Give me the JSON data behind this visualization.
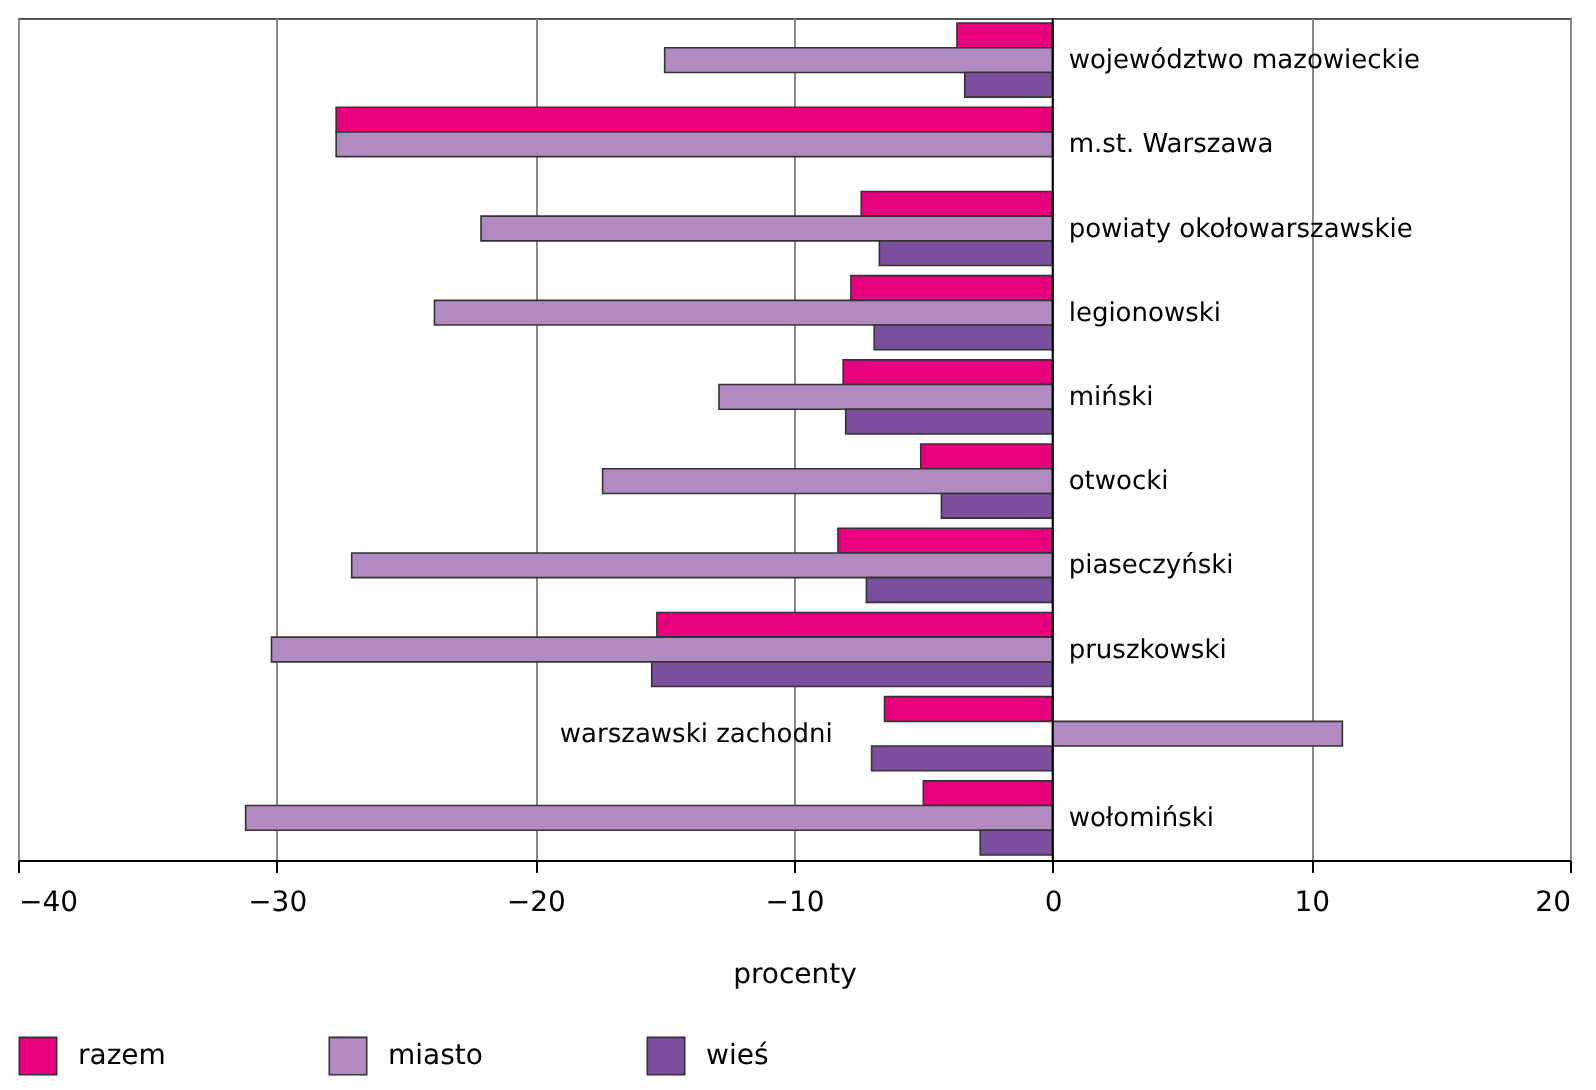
{
  "chart_data": {
    "type": "bar",
    "orientation": "horizontal",
    "xlabel": "procenty",
    "categories": [
      "województwo mazowieckie",
      "m.st. Warszawa",
      "powiaty okołowarszawskie",
      "legionowski",
      "miński",
      "otwocki",
      "piaseczyński",
      "pruszkowski",
      "warszawski zachodni",
      "wołomiński"
    ],
    "series": [
      {
        "name": "razem",
        "color": "#e6007e",
        "values": [
          -3.7,
          -27.7,
          -7.4,
          -7.8,
          -8.1,
          -5.1,
          -8.3,
          -15.3,
          -6.5,
          -5.0
        ]
      },
      {
        "name": "miasto",
        "color": "#b08ac0",
        "values": [
          -15.0,
          -27.7,
          -22.1,
          -23.9,
          -12.9,
          -17.4,
          -27.1,
          -30.2,
          11.2,
          -31.2
        ]
      },
      {
        "name": "wieś",
        "color": "#7b4f9e",
        "values": [
          -3.4,
          null,
          -6.7,
          -6.9,
          -8.0,
          -4.3,
          -7.2,
          -15.5,
          -7.0,
          -2.8
        ]
      }
    ],
    "xlim": [
      -40,
      20
    ],
    "xticks": [
      -40,
      -30,
      -20,
      -10,
      0,
      10,
      20
    ],
    "grid": "x",
    "legend": "bottom"
  }
}
